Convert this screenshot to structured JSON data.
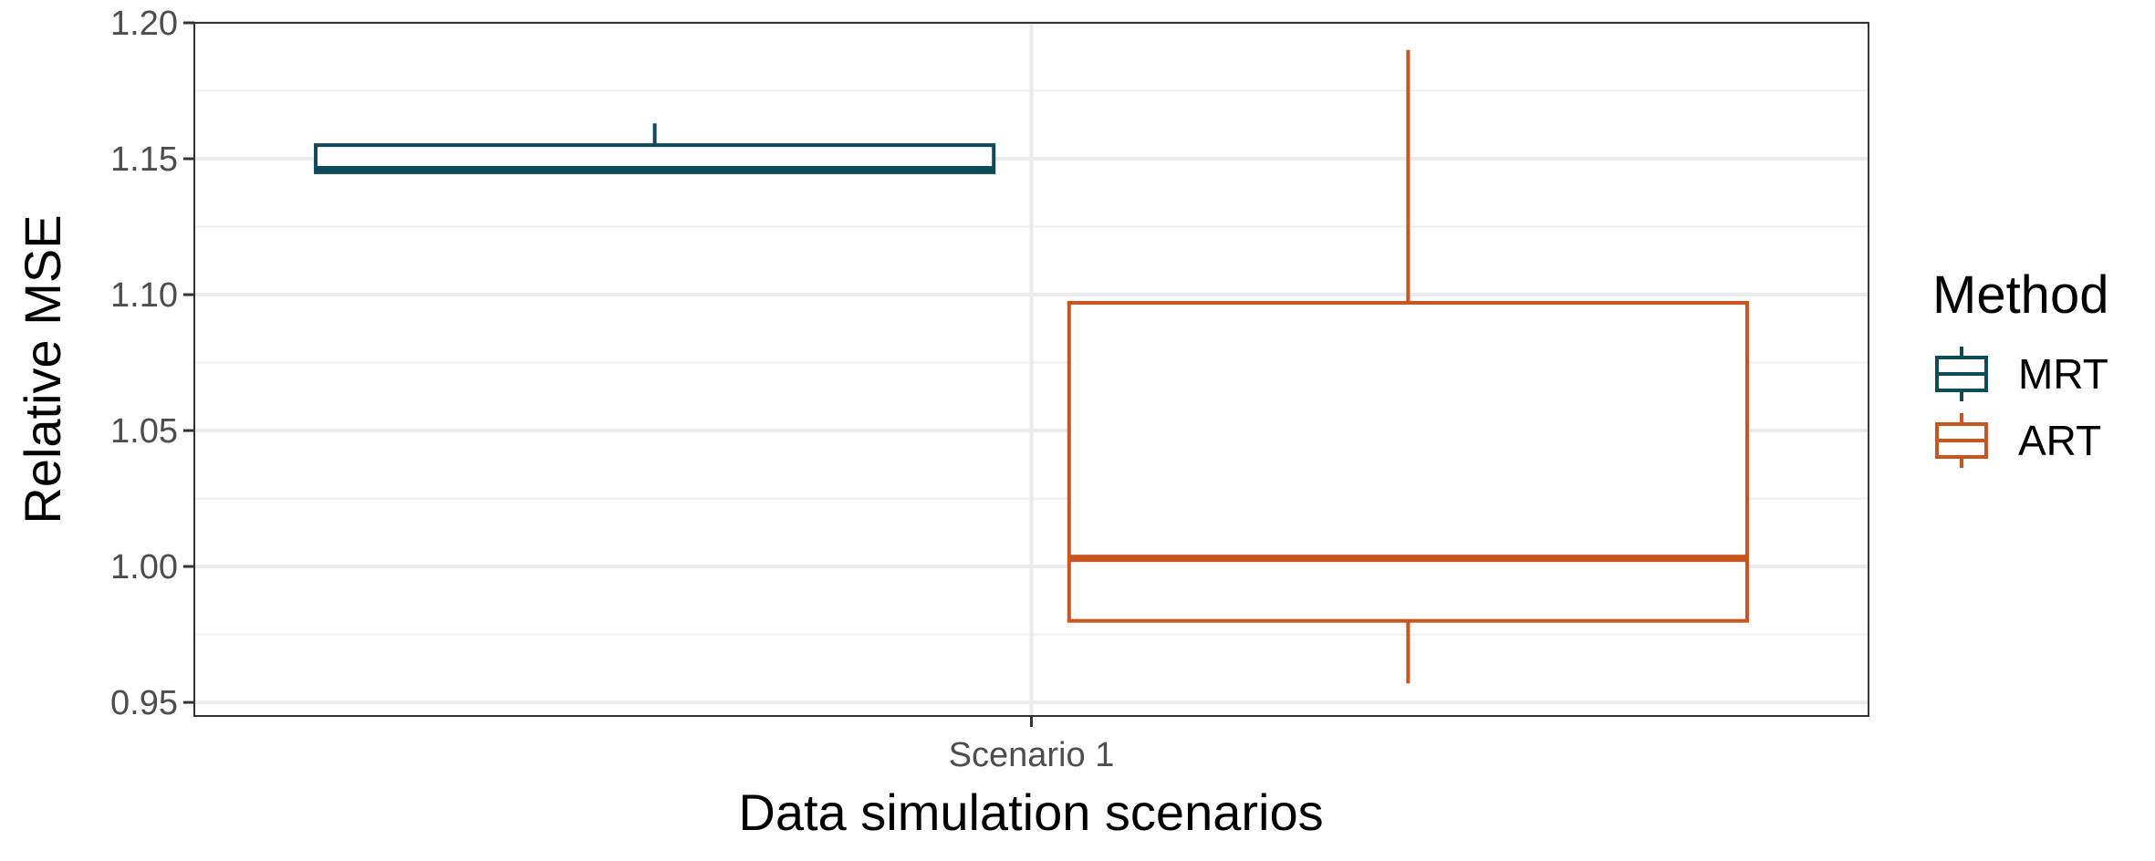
{
  "chart_data": {
    "type": "boxplot",
    "title": "",
    "xlabel": "Data simulation scenarios",
    "ylabel": "Relative MSE",
    "categories": [
      "Scenario 1"
    ],
    "ylim": [
      0.945,
      1.2
    ],
    "yticks": [
      0.95,
      1.0,
      1.05,
      1.1,
      1.15,
      1.2
    ],
    "ytick_labels": [
      "0.95",
      "1.00",
      "1.05",
      "1.10",
      "1.15",
      "1.20"
    ],
    "grid": true,
    "legend": {
      "title": "Method",
      "placement": "right",
      "entries": [
        "MRT",
        "ART"
      ]
    },
    "series": [
      {
        "name": "MRT",
        "color": "#0d4a5a",
        "category": "Scenario 1",
        "whisker_low": 1.145,
        "q1": 1.145,
        "median": 1.146,
        "q3": 1.155,
        "whisker_high": 1.163
      },
      {
        "name": "ART",
        "color": "#c9541f",
        "category": "Scenario 1",
        "whisker_low": 0.957,
        "q1": 0.98,
        "median": 1.003,
        "q3": 1.097,
        "whisker_high": 1.19
      }
    ]
  }
}
